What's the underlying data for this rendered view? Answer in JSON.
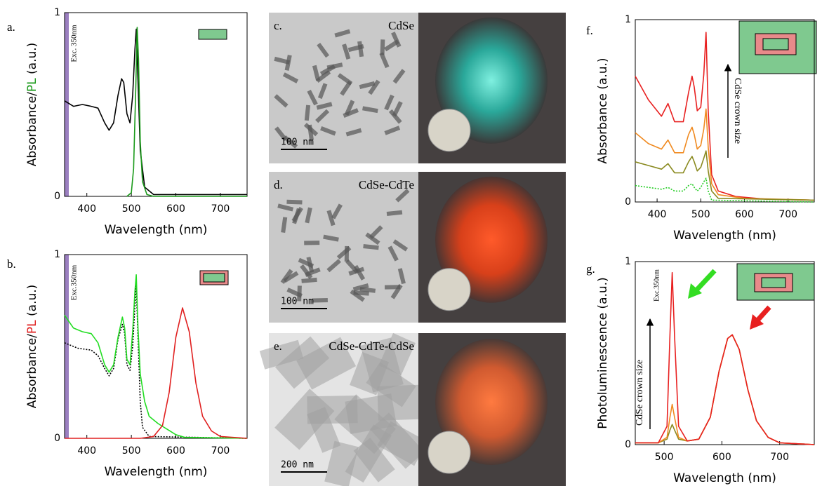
{
  "chart_data": [
    {
      "type": "line",
      "panel": "a.",
      "ylabel_parts": [
        "Absorbance/",
        "PL",
        " (a.u.)"
      ],
      "ylabel_colors": [
        "#000000",
        "#1a9a1a",
        "#000000"
      ],
      "xlabel": "Wavelength (nm)",
      "xlim": [
        350,
        760
      ],
      "xticks": [
        400,
        500,
        600,
        700
      ],
      "ylim": [
        0,
        1
      ],
      "yticks": [
        0,
        1
      ],
      "annotations": [
        "Exc. 350nm"
      ],
      "series": [
        {
          "color": "#000000",
          "style": "solid",
          "x": [
            350,
            370,
            390,
            410,
            425,
            440,
            450,
            460,
            470,
            478,
            483,
            490,
            497,
            503,
            508,
            511,
            514,
            520,
            530,
            550,
            760
          ],
          "values": [
            0.52,
            0.49,
            0.5,
            0.49,
            0.48,
            0.4,
            0.36,
            0.4,
            0.55,
            0.64,
            0.62,
            0.45,
            0.4,
            0.55,
            0.8,
            0.91,
            0.7,
            0.25,
            0.05,
            0.01,
            0.01
          ]
        },
        {
          "color": "#1a9a1a",
          "style": "solid",
          "x": [
            490,
            500,
            505,
            510,
            513,
            516,
            520,
            525,
            535,
            550,
            760
          ],
          "values": [
            0,
            0.02,
            0.15,
            0.6,
            0.92,
            0.75,
            0.3,
            0.08,
            0.01,
            0,
            0
          ]
        }
      ]
    },
    {
      "type": "line",
      "panel": "b.",
      "ylabel_parts": [
        "Absorbance/",
        "PL",
        " (a.u.)"
      ],
      "ylabel_colors": [
        "#000000",
        "#e02020",
        "#000000"
      ],
      "xlabel": "Wavelength (nm)",
      "xlim": [
        350,
        760
      ],
      "xticks": [
        400,
        500,
        600,
        700
      ],
      "ylim": [
        0,
        1
      ],
      "yticks": [
        0,
        1
      ],
      "annotations": [
        "Exc.350nm"
      ],
      "series": [
        {
          "color": "#000000",
          "style": "dotted",
          "x": [
            350,
            380,
            410,
            425,
            440,
            450,
            460,
            470,
            480,
            485,
            490,
            497,
            503,
            508,
            511,
            515,
            520,
            525,
            540,
            760
          ],
          "values": [
            0.52,
            0.49,
            0.48,
            0.45,
            0.38,
            0.34,
            0.38,
            0.54,
            0.62,
            0.57,
            0.4,
            0.37,
            0.5,
            0.72,
            0.83,
            0.55,
            0.2,
            0.06,
            0.01,
            0
          ]
        },
        {
          "color": "#22dd22",
          "style": "solid",
          "x": [
            350,
            370,
            390,
            410,
            425,
            440,
            450,
            460,
            470,
            480,
            485,
            490,
            497,
            503,
            508,
            511,
            515,
            520,
            530,
            540,
            560,
            580,
            600,
            620,
            760
          ],
          "values": [
            0.67,
            0.6,
            0.58,
            0.57,
            0.52,
            0.4,
            0.36,
            0.4,
            0.55,
            0.66,
            0.6,
            0.43,
            0.4,
            0.58,
            0.8,
            0.89,
            0.6,
            0.35,
            0.2,
            0.12,
            0.08,
            0.05,
            0.02,
            0.005,
            0
          ]
        },
        {
          "color": "#e02020",
          "style": "solid",
          "x": [
            350,
            520,
            550,
            570,
            585,
            600,
            615,
            630,
            645,
            660,
            680,
            700,
            760
          ],
          "values": [
            0,
            0,
            0.01,
            0.07,
            0.25,
            0.55,
            0.71,
            0.58,
            0.3,
            0.12,
            0.04,
            0.01,
            0
          ]
        }
      ]
    },
    {
      "type": "line",
      "panel": "f.",
      "ylabel": "Absorbance (a.u.)",
      "xlabel": "Wavelength (nm)",
      "xlim": [
        350,
        760
      ],
      "xticks": [
        400,
        500,
        600,
        700
      ],
      "ylim": [
        0,
        1
      ],
      "yticks": [
        0,
        1
      ],
      "annotations": [
        "CdSe crown size"
      ],
      "series": [
        {
          "color": "#e82020",
          "style": "solid",
          "x": [
            350,
            380,
            410,
            425,
            440,
            460,
            472,
            480,
            485,
            492,
            500,
            507,
            512,
            517,
            525,
            540,
            580,
            650,
            760
          ],
          "values": [
            0.69,
            0.56,
            0.47,
            0.54,
            0.44,
            0.44,
            0.6,
            0.69,
            0.63,
            0.5,
            0.52,
            0.7,
            0.93,
            0.5,
            0.15,
            0.06,
            0.03,
            0.015,
            0.01
          ]
        },
        {
          "color": "#f08a20",
          "style": "solid",
          "x": [
            350,
            380,
            410,
            425,
            440,
            460,
            472,
            480,
            485,
            492,
            500,
            507,
            512,
            517,
            525,
            540,
            600,
            760
          ],
          "values": [
            0.38,
            0.32,
            0.29,
            0.34,
            0.27,
            0.27,
            0.37,
            0.41,
            0.37,
            0.29,
            0.31,
            0.4,
            0.51,
            0.3,
            0.1,
            0.04,
            0.02,
            0.01
          ]
        },
        {
          "color": "#8a8a20",
          "style": "solid",
          "x": [
            350,
            380,
            410,
            425,
            440,
            460,
            472,
            480,
            485,
            492,
            500,
            507,
            512,
            517,
            525,
            540,
            760
          ],
          "values": [
            0.22,
            0.2,
            0.18,
            0.21,
            0.16,
            0.16,
            0.22,
            0.25,
            0.22,
            0.17,
            0.19,
            0.24,
            0.28,
            0.17,
            0.06,
            0.02,
            0.01
          ]
        },
        {
          "color": "#22cc22",
          "style": "dotted",
          "x": [
            350,
            380,
            410,
            425,
            440,
            460,
            472,
            480,
            485,
            492,
            500,
            507,
            512,
            517,
            525,
            760
          ],
          "values": [
            0.09,
            0.08,
            0.07,
            0.08,
            0.06,
            0.06,
            0.09,
            0.1,
            0.08,
            0.06,
            0.08,
            0.11,
            0.13,
            0.06,
            0.01,
            0
          ]
        }
      ]
    },
    {
      "type": "line",
      "panel": "g.",
      "ylabel": "Photoluminescence (a.u.)",
      "xlabel": "Wavelength (nm)",
      "xlim": [
        450,
        760
      ],
      "xticks": [
        500,
        600,
        700
      ],
      "ylim": [
        0,
        1
      ],
      "yticks": [
        0,
        1
      ],
      "annotations": [
        "Exc.350nm",
        "CdSe crown size"
      ],
      "series": [
        {
          "color": "#8a8a20",
          "style": "solid",
          "x": [
            450,
            490,
            505,
            510,
            514,
            518,
            525,
            540,
            560,
            580,
            595,
            610,
            618,
            630,
            645,
            660,
            680,
            700,
            760
          ],
          "values": [
            0.01,
            0.01,
            0.03,
            0.08,
            0.11,
            0.08,
            0.03,
            0.02,
            0.03,
            0.15,
            0.4,
            0.58,
            0.6,
            0.52,
            0.3,
            0.13,
            0.04,
            0.01,
            0
          ]
        },
        {
          "color": "#f08a20",
          "style": "solid",
          "x": [
            450,
            490,
            505,
            510,
            514,
            518,
            525,
            540,
            560,
            580,
            595,
            610,
            618,
            630,
            645,
            660,
            680,
            700,
            760
          ],
          "values": [
            0.01,
            0.01,
            0.04,
            0.15,
            0.22,
            0.15,
            0.04,
            0.02,
            0.03,
            0.15,
            0.4,
            0.58,
            0.6,
            0.52,
            0.3,
            0.13,
            0.04,
            0.01,
            0
          ]
        },
        {
          "color": "#e82020",
          "style": "solid",
          "x": [
            450,
            490,
            505,
            510,
            514,
            518,
            525,
            540,
            560,
            580,
            595,
            610,
            618,
            630,
            645,
            660,
            680,
            700,
            760
          ],
          "values": [
            0.01,
            0.01,
            0.1,
            0.6,
            0.94,
            0.6,
            0.1,
            0.02,
            0.03,
            0.15,
            0.4,
            0.58,
            0.6,
            0.52,
            0.3,
            0.13,
            0.04,
            0.01,
            0
          ]
        }
      ]
    }
  ],
  "panels": [
    {
      "label": "c.",
      "name": "CdSe",
      "scale": "100 nm"
    },
    {
      "label": "d.",
      "name": "CdSe-CdTe",
      "scale": "100 nm"
    },
    {
      "label": "e.",
      "name": "CdSe-CdTe-CdSe",
      "scale": "200 nm"
    }
  ]
}
